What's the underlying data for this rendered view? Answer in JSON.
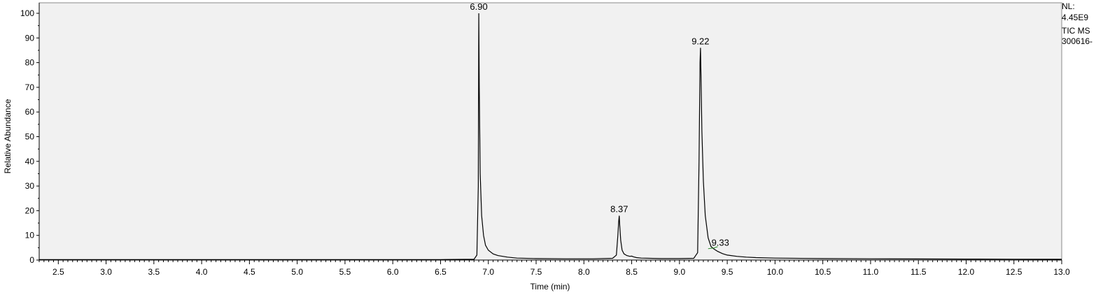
{
  "info": {
    "nl_label": "NL:",
    "nl_value": "4.45E9",
    "scan_filter": "TIC  MS",
    "file_name": "300616-"
  },
  "chart_data": {
    "type": "line",
    "xlabel": "Time (min)",
    "ylabel": "Relative Abundance",
    "xlim": [
      2.3,
      13.0
    ],
    "ylim": [
      0,
      100
    ],
    "x_ticks": [
      "2.5",
      "3.0",
      "3.5",
      "4.0",
      "4.5",
      "5.0",
      "5.5",
      "6.0",
      "6.5",
      "7.0",
      "7.5",
      "8.0",
      "8.5",
      "9.0",
      "9.5",
      "10.0",
      "10.5",
      "11.0",
      "11.5",
      "12.0",
      "12.5",
      "13.0"
    ],
    "y_ticks": [
      "0",
      "10",
      "20",
      "30",
      "40",
      "50",
      "60",
      "70",
      "80",
      "90",
      "100"
    ],
    "grid": false,
    "background_color": "#f1f1f1",
    "line_color": "#000000",
    "integration_color": "#2e8b2e",
    "peaks": [
      {
        "rt": 6.9,
        "label": "6.90",
        "height": 100
      },
      {
        "rt": 8.37,
        "label": "8.37",
        "height": 18
      },
      {
        "rt": 9.22,
        "label": "9.22",
        "height": 86
      },
      {
        "rt": 9.33,
        "label": "9.33",
        "height": 5
      }
    ],
    "series": [
      {
        "x": [
          2.3,
          6.5,
          6.85,
          6.88,
          6.895,
          6.9,
          6.905,
          6.915,
          6.93,
          6.95,
          6.97,
          7.0,
          7.05,
          7.1,
          7.2,
          7.3,
          7.5,
          7.8,
          8.1,
          8.3,
          8.34,
          8.355,
          8.365,
          8.37,
          8.375,
          8.385,
          8.4,
          8.42,
          8.45,
          8.48,
          8.5,
          8.52,
          8.55,
          8.6,
          8.8,
          9.0,
          9.15,
          9.19,
          9.205,
          9.215,
          9.22,
          9.225,
          9.235,
          9.25,
          9.27,
          9.3,
          9.33,
          9.36,
          9.4,
          9.45,
          9.5,
          9.6,
          9.7,
          9.8,
          10.0,
          10.5,
          11.0,
          11.5,
          12.0,
          12.5,
          13.0
        ],
        "y": [
          0.2,
          0.2,
          0.3,
          2,
          30,
          100,
          70,
          35,
          18,
          10,
          6,
          4,
          2.5,
          1.8,
          1.2,
          0.8,
          0.6,
          0.5,
          0.5,
          0.7,
          2,
          10,
          16,
          18,
          14,
          8,
          4,
          2.5,
          1.8,
          1.5,
          1.6,
          1.3,
          1.0,
          0.8,
          0.6,
          0.6,
          0.7,
          3,
          40,
          80,
          86,
          75,
          52,
          32,
          18,
          9,
          5.5,
          4.5,
          3.5,
          2.6,
          2.0,
          1.5,
          1.2,
          1.0,
          0.8,
          0.6,
          0.5,
          0.45,
          0.4,
          0.35,
          0.3
        ]
      }
    ]
  }
}
